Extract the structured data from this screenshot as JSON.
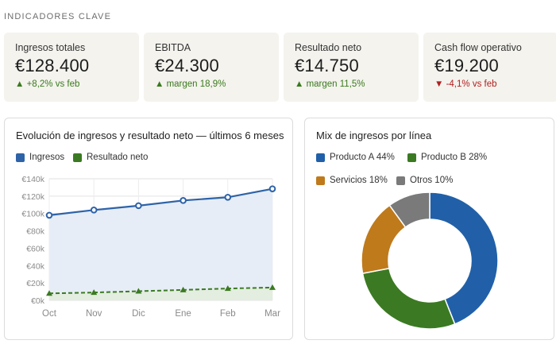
{
  "section_title": "INDICADORES CLAVE",
  "kpis": [
    {
      "label": "Ingresos totales",
      "value": "€128.400",
      "delta": "▲ +8,2% vs feb",
      "trend": "up"
    },
    {
      "label": "EBITDA",
      "value": "€24.300",
      "delta": "▲ margen 18,9%",
      "trend": "up"
    },
    {
      "label": "Resultado neto",
      "value": "€14.750",
      "delta": "▲ margen 11,5%",
      "trend": "up"
    },
    {
      "label": "Cash flow operativo",
      "value": "€19.200",
      "delta": "▼ -4,1% vs feb",
      "trend": "down"
    }
  ],
  "colors": {
    "ingresos": "#2e63a8",
    "neto": "#3b7a22",
    "productoA": "#2160a8",
    "productoB": "#3b7a22",
    "servicios": "#bf7a1c",
    "otros": "#7a7a7a"
  },
  "line_card": {
    "title": "Evolución de ingresos y resultado neto — últimos 6 meses",
    "legend": [
      "Ingresos",
      "Resultado neto"
    ]
  },
  "donut_card": {
    "title": "Mix de ingresos por línea",
    "legend": [
      "Producto A 44%",
      "Producto B 28%",
      "Servicios 18%",
      "Otros 10%"
    ]
  },
  "chart_data": [
    {
      "type": "line",
      "title": "Evolución de ingresos y resultado neto — últimos 6 meses",
      "categories": [
        "Oct",
        "Nov",
        "Dic",
        "Ene",
        "Feb",
        "Mar"
      ],
      "y_ticks": [
        "€0k",
        "€20k",
        "€40k",
        "€60k",
        "€80k",
        "€100k",
        "€120k",
        "€140k"
      ],
      "ylim": [
        0,
        140
      ],
      "grid": true,
      "legend_position": "top-left",
      "series": [
        {
          "name": "Ingresos",
          "values": [
            98,
            104,
            109,
            115,
            118.7,
            128.4
          ],
          "style": "solid-area"
        },
        {
          "name": "Resultado neto",
          "values": [
            8,
            9,
            10.5,
            12,
            13.6,
            14.75
          ],
          "style": "dashed-triangle"
        }
      ]
    },
    {
      "type": "pie",
      "title": "Mix de ingresos por línea",
      "donut": true,
      "categories": [
        "Producto A",
        "Producto B",
        "Servicios",
        "Otros"
      ],
      "values": [
        44,
        28,
        18,
        10
      ],
      "legend_position": "top"
    }
  ]
}
